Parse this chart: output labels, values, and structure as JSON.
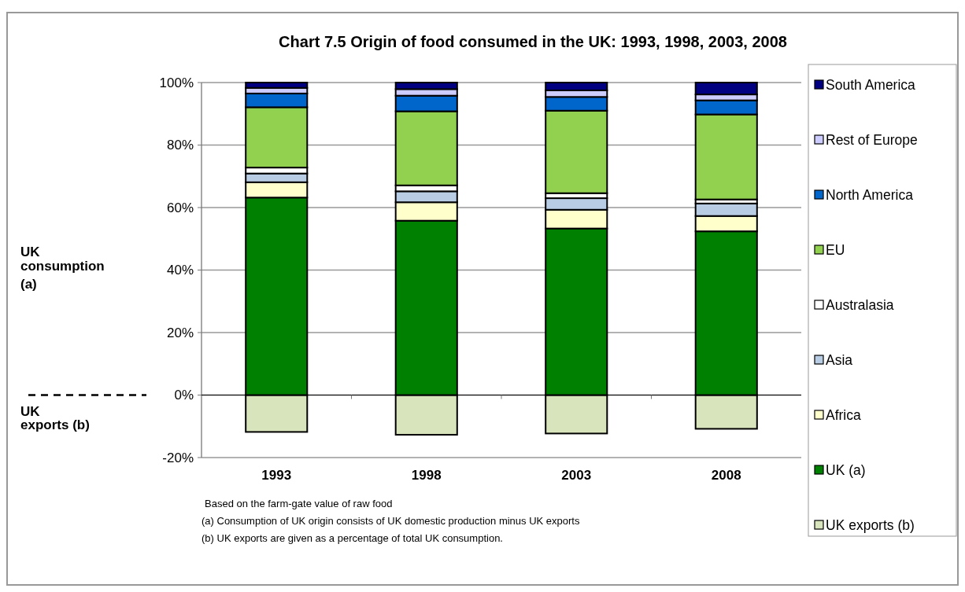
{
  "chart_data": {
    "type": "bar",
    "stacked": true,
    "title": "Chart 7.5 Origin of food consumed in the UK: 1993, 1998, 2003, 2008",
    "categories": [
      "1993",
      "1998",
      "2003",
      "2008"
    ],
    "series": [
      {
        "name": "UK exports (b)",
        "color": "#d8e4bc",
        "values": [
          -11.8,
          -12.7,
          -12.3,
          -10.8
        ]
      },
      {
        "name": "UK (a)",
        "color": "#008000",
        "values": [
          63.2,
          55.8,
          53.3,
          52.4
        ]
      },
      {
        "name": "Africa",
        "color": "#ffffcc",
        "values": [
          4.9,
          5.9,
          6.0,
          4.9
        ]
      },
      {
        "name": "Asia",
        "color": "#b8cce4",
        "values": [
          2.8,
          3.5,
          3.7,
          4.0
        ]
      },
      {
        "name": "Australasia",
        "color": "#ffffff",
        "values": [
          1.9,
          1.9,
          1.6,
          1.3
        ]
      },
      {
        "name": "EU",
        "color": "#92d050",
        "values": [
          19.3,
          23.7,
          26.4,
          27.2
        ]
      },
      {
        "name": "North America",
        "color": "#0066cc",
        "values": [
          4.4,
          5.0,
          4.4,
          4.5
        ]
      },
      {
        "name": "Rest of Europe",
        "color": "#ccccff",
        "values": [
          1.8,
          2.1,
          2.1,
          1.9
        ]
      },
      {
        "name": "South America",
        "color": "#000080",
        "values": [
          1.7,
          2.1,
          2.5,
          3.8
        ]
      }
    ],
    "ylim": [
      -20,
      100
    ],
    "yticks": [
      {
        "value": -20,
        "label": "-20%"
      },
      {
        "value": 0,
        "label": "0%"
      },
      {
        "value": 20,
        "label": "20%"
      },
      {
        "value": 40,
        "label": "40%"
      },
      {
        "value": 60,
        "label": "60%"
      },
      {
        "value": 80,
        "label": "80%"
      },
      {
        "value": 100,
        "label": "100%"
      }
    ],
    "grid": "y",
    "legend": "right",
    "annotations": [
      "UK consumption (a)",
      "UK exports (b)",
      "Based on the farm-gate value of raw food",
      "(a) Consumption of UK origin consists of UK domestic production minus UK exports",
      "(b) UK exports are given as a percentage of total UK consumption."
    ]
  }
}
